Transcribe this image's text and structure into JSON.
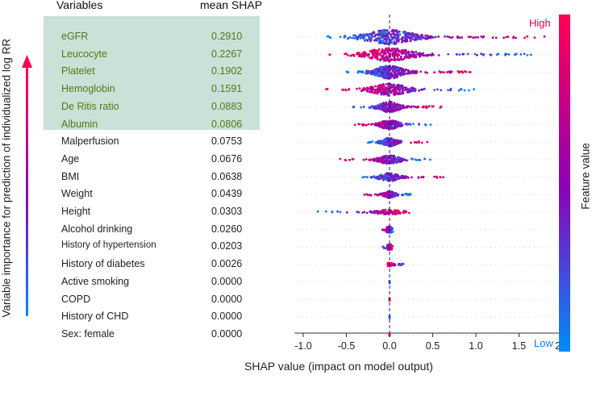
{
  "chart_data": {
    "type": "scatter",
    "subtype": "shap-beeswarm",
    "headers": {
      "variables": "Variables",
      "mean_shap": "mean SHAP"
    },
    "features": [
      {
        "name": "eGFR",
        "mean_shap": "0.2910",
        "highlight": true,
        "range": [
          -0.75,
          1.85
        ],
        "spread": 1.0
      },
      {
        "name": "Leucocyte",
        "mean_shap": "0.2267",
        "highlight": true,
        "range": [
          -0.7,
          1.7
        ],
        "spread": 0.9
      },
      {
        "name": "Platelet",
        "mean_shap": "0.1902",
        "highlight": true,
        "range": [
          -0.5,
          0.95
        ],
        "spread": 0.9
      },
      {
        "name": "Hemoglobin",
        "mean_shap": "0.1591",
        "highlight": true,
        "range": [
          -0.75,
          1.05
        ],
        "spread": 0.8
      },
      {
        "name": "De Ritis ratio",
        "mean_shap": "0.0883",
        "highlight": true,
        "range": [
          -0.45,
          0.6
        ],
        "spread": 0.7
      },
      {
        "name": "Albumin",
        "mean_shap": "0.0806",
        "highlight": true,
        "range": [
          -0.45,
          0.5
        ],
        "spread": 0.6
      },
      {
        "name": "Malperfusion",
        "mean_shap": "0.0753",
        "highlight": false,
        "range": [
          -0.25,
          0.45
        ],
        "spread": 0.55
      },
      {
        "name": "Age",
        "mean_shap": "0.0676",
        "highlight": false,
        "range": [
          -0.6,
          0.5
        ],
        "spread": 0.55
      },
      {
        "name": "BMI",
        "mean_shap": "0.0638",
        "highlight": false,
        "range": [
          -0.35,
          0.65
        ],
        "spread": 0.5
      },
      {
        "name": "Weight",
        "mean_shap": "0.0439",
        "highlight": false,
        "range": [
          -0.3,
          0.25
        ],
        "spread": 0.4
      },
      {
        "name": "Height",
        "mean_shap": "0.0303",
        "highlight": false,
        "range": [
          -0.85,
          0.35
        ],
        "spread": 0.25
      },
      {
        "name": "Alcohol drinking",
        "mean_shap": "0.0260",
        "highlight": false,
        "range": [
          -0.1,
          0.05
        ],
        "spread": 0.35
      },
      {
        "name": "History of hypertension",
        "mean_shap": "0.0203",
        "highlight": false,
        "range": [
          -0.08,
          0.04
        ],
        "spread": 0.3
      },
      {
        "name": "History of diabetes",
        "mean_shap": "0.0026",
        "highlight": false,
        "range": [
          -0.02,
          0.18
        ],
        "spread": 0.15
      },
      {
        "name": "Active smoking",
        "mean_shap": "0.0000",
        "highlight": false,
        "range": [
          0,
          0
        ],
        "spread": 0.05
      },
      {
        "name": "COPD",
        "mean_shap": "0.0000",
        "highlight": false,
        "range": [
          0,
          0
        ],
        "spread": 0.05
      },
      {
        "name": "History of CHD",
        "mean_shap": "0.0000",
        "highlight": false,
        "range": [
          0,
          0
        ],
        "spread": 0.05
      },
      {
        "name": "Sex: female",
        "mean_shap": "0.0000",
        "highlight": false,
        "range": [
          0,
          0
        ],
        "spread": 0.05
      }
    ],
    "x_ticks": [
      "-1.0",
      "-0.5",
      "0.0",
      "0.5",
      "1.0",
      "1.5",
      "2.0"
    ],
    "x_tick_values": [
      -1.0,
      -0.5,
      0.0,
      0.5,
      1.0,
      1.5,
      2.0
    ],
    "xlim": [
      -1.1,
      2.05
    ],
    "xlabel": "SHAP value (impact on model output)",
    "ylabel": "Variable importance for prediction of individualized log RR",
    "colorbar": {
      "title": "Feature value",
      "high": "High",
      "low": "Low",
      "colors": [
        "#ff0052",
        "#8f00b3",
        "#008bfc"
      ]
    }
  }
}
